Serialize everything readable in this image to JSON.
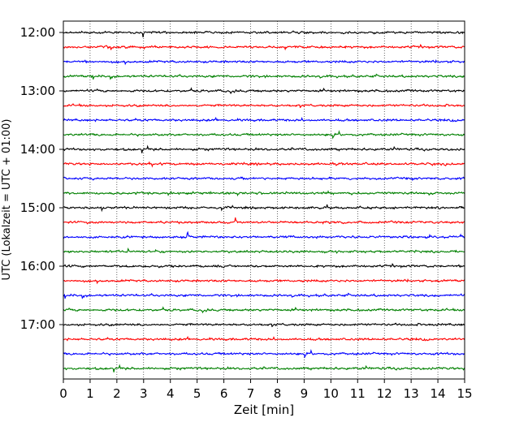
{
  "chart_data": {
    "type": "line",
    "title": "",
    "xlabel": "Zeit  [min]",
    "ylabel": "UTC (Lokalzeit = UTC + 01:00)",
    "x_ticks": [
      "0",
      "1",
      "2",
      "3",
      "4",
      "5",
      "6",
      "7",
      "8",
      "9",
      "10",
      "11",
      "12",
      "13",
      "14",
      "15"
    ],
    "xlim": [
      0,
      15
    ],
    "y_ticks": [
      "12:00",
      "13:00",
      "14:00",
      "15:00",
      "16:00",
      "17:00"
    ],
    "y_tick_hours": [
      12,
      13,
      14,
      15,
      16,
      17
    ],
    "time_range": [
      "12:00",
      "17:45"
    ],
    "line_interval_minutes": 15,
    "line_count": 24,
    "trace_colors": [
      "#000000",
      "#ff0000",
      "#0000ff",
      "#008000"
    ],
    "grid": "vertical dotted lines at each minute",
    "legend": "none"
  }
}
